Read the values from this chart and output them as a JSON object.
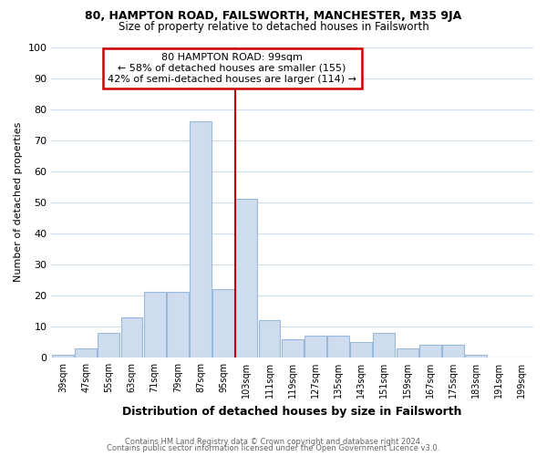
{
  "title": "80, HAMPTON ROAD, FAILSWORTH, MANCHESTER, M35 9JA",
  "subtitle": "Size of property relative to detached houses in Failsworth",
  "xlabel": "Distribution of detached houses by size in Failsworth",
  "ylabel": "Number of detached properties",
  "bar_labels": [
    "39sqm",
    "47sqm",
    "55sqm",
    "63sqm",
    "71sqm",
    "79sqm",
    "87sqm",
    "95sqm",
    "103sqm",
    "111sqm",
    "119sqm",
    "127sqm",
    "135sqm",
    "143sqm",
    "151sqm",
    "159sqm",
    "167sqm",
    "175sqm",
    "183sqm",
    "191sqm",
    "199sqm"
  ],
  "bar_values": [
    1,
    3,
    8,
    13,
    21,
    21,
    76,
    22,
    51,
    12,
    6,
    7,
    7,
    5,
    8,
    3,
    4,
    4,
    1,
    0,
    0
  ],
  "bar_color": "#cddcee",
  "bar_edge_color": "#9ab8d8",
  "figure_bg": "#ffffff",
  "axes_bg": "#ffffff",
  "grid_color": "#d0dce8",
  "annotation_box_text": "80 HAMPTON ROAD: 99sqm\n← 58% of detached houses are smaller (155)\n42% of semi-detached houses are larger (114) →",
  "annotation_box_edge_color": "#cc0000",
  "annotation_box_face_color": "#ffffff",
  "vline_color": "#cc0000",
  "vline_x": 7.5,
  "ylim": [
    0,
    100
  ],
  "yticks": [
    0,
    10,
    20,
    30,
    40,
    50,
    60,
    70,
    80,
    90,
    100
  ],
  "footer_line1": "Contains HM Land Registry data © Crown copyright and database right 2024.",
  "footer_line2": "Contains public sector information licensed under the Open Government Licence v3.0."
}
